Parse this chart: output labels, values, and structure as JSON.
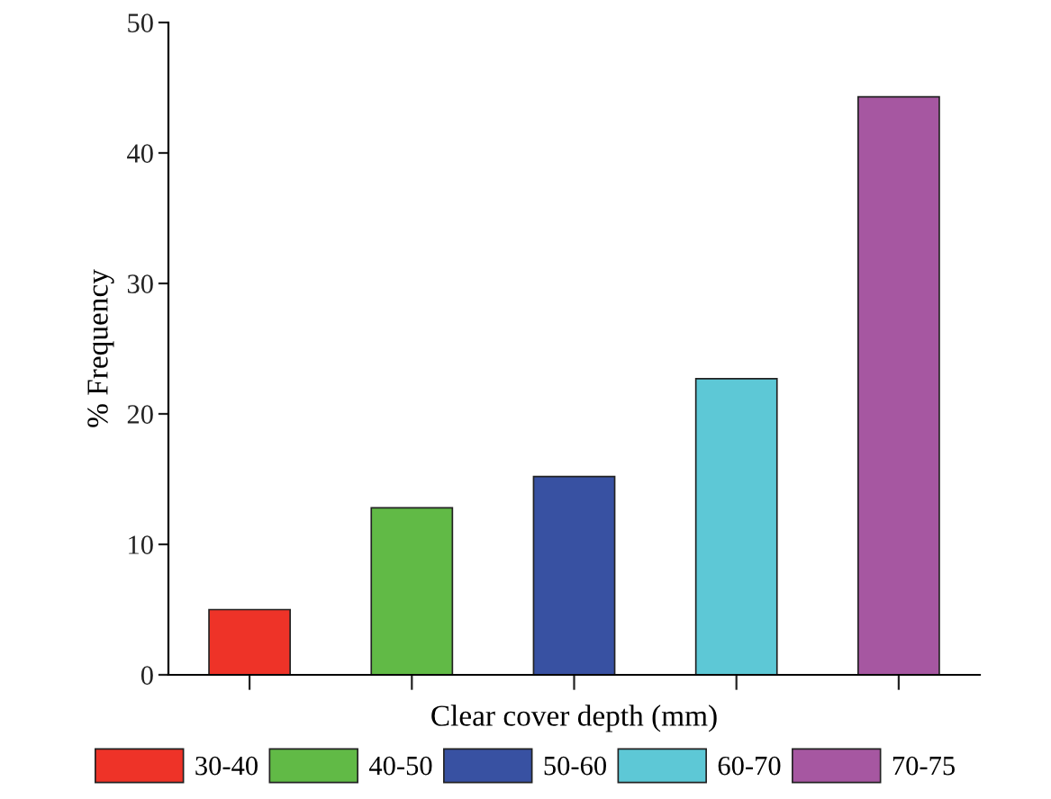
{
  "chart_data": {
    "type": "bar",
    "xlabel": "Clear cover depth (mm)",
    "ylabel": "% Frequency",
    "categories": [
      null,
      null,
      null,
      null,
      null
    ],
    "series": [
      {
        "name": "30-40",
        "color": "#ee3328",
        "values": [
          5.0,
          null,
          null,
          null,
          null
        ]
      },
      {
        "name": "40-50",
        "color": "#61ba46",
        "values": [
          null,
          12.8,
          null,
          null,
          null
        ]
      },
      {
        "name": "50-60",
        "color": "#3851a2",
        "values": [
          null,
          null,
          15.2,
          null,
          null
        ]
      },
      {
        "name": "60-70",
        "color": "#5dc8d6",
        "values": [
          null,
          null,
          null,
          22.7,
          null
        ]
      },
      {
        "name": "70-75",
        "color": "#a657a1",
        "values": [
          null,
          null,
          null,
          null,
          44.3
        ]
      }
    ],
    "ylim": [
      0,
      50
    ],
    "yticks": [
      0,
      10,
      20,
      30,
      40,
      50
    ],
    "grid": false,
    "legend": "bottom"
  }
}
